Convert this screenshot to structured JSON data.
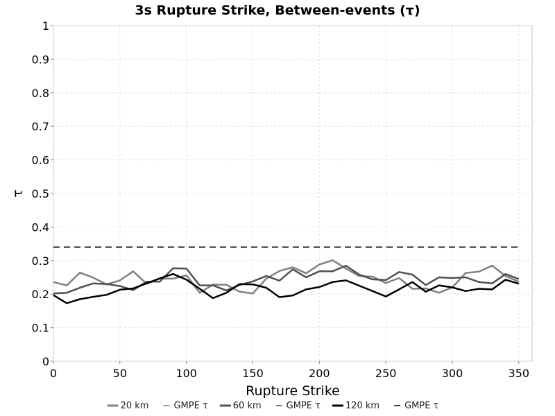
{
  "chart_data": {
    "type": "line",
    "title": "3s Rupture Strike, Between-events (τ)",
    "xlabel": "Rupture Strike",
    "ylabel": "τ",
    "xlim": [
      0,
      360
    ],
    "ylim": [
      0,
      1
    ],
    "xticks": [
      0,
      50,
      100,
      150,
      200,
      250,
      300,
      350
    ],
    "yticks": [
      0,
      0.1,
      0.2,
      0.3,
      0.4,
      0.5,
      0.6,
      0.7,
      0.8,
      0.9,
      1
    ],
    "grid": true,
    "legend_position": "bottom",
    "x": [
      0,
      10,
      20,
      30,
      40,
      50,
      60,
      70,
      80,
      90,
      100,
      110,
      120,
      130,
      140,
      150,
      160,
      170,
      180,
      190,
      200,
      210,
      220,
      230,
      240,
      250,
      260,
      270,
      280,
      290,
      300,
      310,
      320,
      330,
      340,
      350
    ],
    "series": [
      {
        "name": "20 km",
        "color": "#808080",
        "width": 2.5,
        "dashed": false,
        "values": [
          0.236,
          0.226,
          0.264,
          0.249,
          0.229,
          0.241,
          0.268,
          0.231,
          0.246,
          0.246,
          0.256,
          0.204,
          0.228,
          0.228,
          0.207,
          0.202,
          0.246,
          0.269,
          0.28,
          0.262,
          0.288,
          0.301,
          0.276,
          0.254,
          0.252,
          0.233,
          0.248,
          0.216,
          0.217,
          0.204,
          0.22,
          0.263,
          0.267,
          0.285,
          0.254,
          0.237
        ]
      },
      {
        "name": "GMPE τ",
        "color": "#808080",
        "width": 1.5,
        "dashed": true,
        "values": [
          0.34,
          0.34,
          0.34,
          0.34,
          0.34,
          0.34,
          0.34,
          0.34,
          0.34,
          0.34,
          0.34,
          0.34,
          0.34,
          0.34,
          0.34,
          0.34,
          0.34,
          0.34,
          0.34,
          0.34,
          0.34,
          0.34,
          0.34,
          0.34,
          0.34,
          0.34,
          0.34,
          0.34,
          0.34,
          0.34,
          0.34,
          0.34,
          0.34,
          0.34,
          0.34,
          0.34
        ]
      },
      {
        "name": "60 km",
        "color": "#505050",
        "width": 2.5,
        "dashed": false,
        "values": [
          0.202,
          0.204,
          0.219,
          0.232,
          0.23,
          0.224,
          0.212,
          0.237,
          0.237,
          0.277,
          0.276,
          0.226,
          0.226,
          0.211,
          0.227,
          0.238,
          0.254,
          0.24,
          0.274,
          0.25,
          0.268,
          0.268,
          0.285,
          0.258,
          0.244,
          0.242,
          0.266,
          0.258,
          0.227,
          0.25,
          0.248,
          0.25,
          0.236,
          0.232,
          0.26,
          0.245
        ]
      },
      {
        "name": "GMPE τ",
        "color": "#505050",
        "width": 1.5,
        "dashed": true,
        "values": [
          0.34,
          0.34,
          0.34,
          0.34,
          0.34,
          0.34,
          0.34,
          0.34,
          0.34,
          0.34,
          0.34,
          0.34,
          0.34,
          0.34,
          0.34,
          0.34,
          0.34,
          0.34,
          0.34,
          0.34,
          0.34,
          0.34,
          0.34,
          0.34,
          0.34,
          0.34,
          0.34,
          0.34,
          0.34,
          0.34,
          0.34,
          0.34,
          0.34,
          0.34,
          0.34,
          0.34
        ]
      },
      {
        "name": "120 km",
        "color": "#000000",
        "width": 2.5,
        "dashed": false,
        "values": [
          0.197,
          0.173,
          0.185,
          0.192,
          0.198,
          0.213,
          0.217,
          0.232,
          0.247,
          0.26,
          0.243,
          0.216,
          0.188,
          0.204,
          0.23,
          0.229,
          0.219,
          0.191,
          0.196,
          0.214,
          0.221,
          0.236,
          0.241,
          0.225,
          0.209,
          0.193,
          0.214,
          0.236,
          0.207,
          0.226,
          0.22,
          0.209,
          0.216,
          0.214,
          0.243,
          0.231
        ]
      },
      {
        "name": "GMPE τ",
        "color": "#000000",
        "width": 1.5,
        "dashed": true,
        "values": [
          0.34,
          0.34,
          0.34,
          0.34,
          0.34,
          0.34,
          0.34,
          0.34,
          0.34,
          0.34,
          0.34,
          0.34,
          0.34,
          0.34,
          0.34,
          0.34,
          0.34,
          0.34,
          0.34,
          0.34,
          0.34,
          0.34,
          0.34,
          0.34,
          0.34,
          0.34,
          0.34,
          0.34,
          0.34,
          0.34,
          0.34,
          0.34,
          0.34,
          0.34,
          0.34,
          0.34
        ]
      }
    ]
  }
}
